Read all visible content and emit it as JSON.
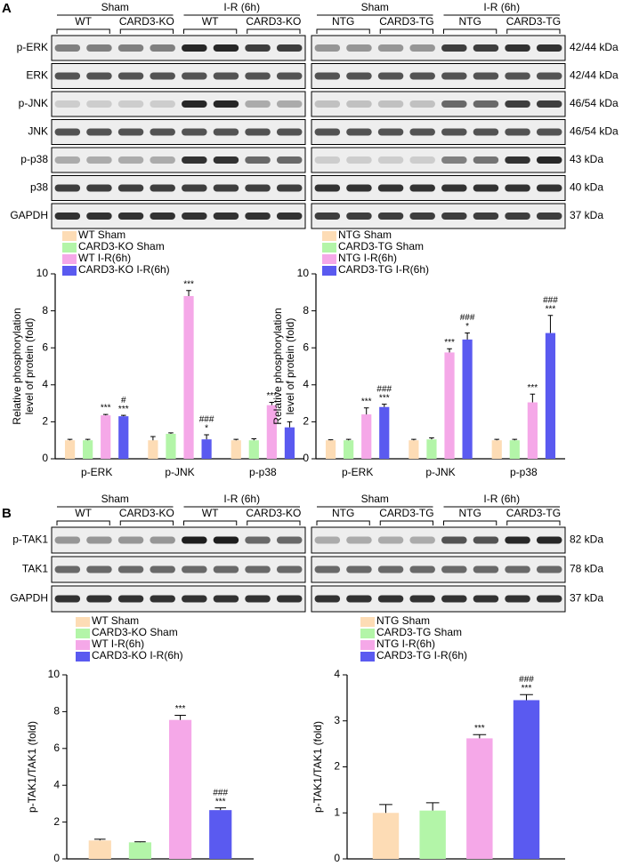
{
  "panel_labels": [
    "A",
    "B"
  ],
  "blots": [
    {
      "groups": [
        "Sham",
        "I-R (6h)"
      ],
      "lanes": [
        "WT",
        "CARD3-KO",
        "WT",
        "CARD3-KO"
      ],
      "rows": [
        "p-ERK",
        "ERK",
        "p-JNK",
        "JNK",
        "p-p38",
        "p38",
        "GAPDH"
      ]
    },
    {
      "groups": [
        "Sham",
        "I-R (6h)"
      ],
      "lanes": [
        "NTG",
        "CARD3-TG",
        "NTG",
        "CARD3-TG"
      ],
      "sizes": [
        "42/44 kDa",
        "42/44 kDa",
        "46/54 kDa",
        "46/54 kDa",
        "43 kDa",
        "40 kDa",
        "37 kDa"
      ]
    },
    {
      "groups": [
        "Sham",
        "I-R (6h)"
      ],
      "lanes": [
        "WT",
        "CARD3-KO",
        "WT",
        "CARD3-KO"
      ],
      "rows": [
        "p-TAK1",
        "TAK1",
        "GAPDH"
      ]
    },
    {
      "groups": [
        "Sham",
        "I-R (6h)"
      ],
      "lanes": [
        "NTG",
        "CARD3-TG",
        "NTG",
        "CARD3-TG"
      ],
      "sizes": [
        "82 kDa",
        "78 kDa",
        "37 kDa"
      ]
    }
  ],
  "chart_data": [
    {
      "type": "bar",
      "ylabel": [
        "Relative phosphorylation",
        "level of protein (fold)"
      ],
      "categories": [
        "p-ERK",
        "p-JNK",
        "p-p38"
      ],
      "ylim": [
        0,
        10
      ],
      "yticks": [
        0,
        2,
        4,
        6,
        8,
        10
      ],
      "series": [
        {
          "name": "WT Sham",
          "color": "#fddcb5",
          "values": [
            1.0,
            1.0,
            1.0
          ],
          "errors": [
            0.05,
            0.2,
            0.05
          ],
          "annotations": [
            null,
            null,
            null
          ]
        },
        {
          "name": "CARD3-KO Sham",
          "color": "#b3f5a8",
          "values": [
            1.0,
            1.35,
            1.0
          ],
          "errors": [
            0.05,
            0.05,
            0.08
          ],
          "annotations": [
            null,
            null,
            null
          ]
        },
        {
          "name": "WT I-R(6h)",
          "color": "#f5a8e8",
          "values": [
            2.35,
            8.8,
            2.9
          ],
          "errors": [
            0.05,
            0.3,
            0.15
          ],
          "annotations": [
            [
              "***"
            ],
            [
              "***"
            ],
            [
              "***"
            ]
          ]
        },
        {
          "name": "CARD3-KO I-R(6h)",
          "color": "#5a5af0",
          "values": [
            2.3,
            1.05,
            1.7
          ],
          "errors": [
            0.05,
            0.25,
            0.3
          ],
          "annotations": [
            [
              "#",
              "***"
            ],
            [
              "###",
              "*"
            ],
            null
          ]
        }
      ]
    },
    {
      "type": "bar",
      "ylabel": [
        "Relative phosphorylation",
        "level of protein (fold)"
      ],
      "categories": [
        "p-ERK",
        "p-JNK",
        "p-p38"
      ],
      "ylim": [
        0,
        10
      ],
      "yticks": [
        0,
        2,
        4,
        6,
        8,
        10
      ],
      "series": [
        {
          "name": "NTG Sham",
          "color": "#fddcb5",
          "values": [
            1.0,
            1.0,
            1.0
          ],
          "errors": [
            0.03,
            0.05,
            0.05
          ],
          "annotations": [
            null,
            null,
            null
          ]
        },
        {
          "name": "CARD3-TG Sham",
          "color": "#b3f5a8",
          "values": [
            1.0,
            1.05,
            1.0
          ],
          "errors": [
            0.05,
            0.08,
            0.05
          ],
          "annotations": [
            null,
            null,
            null
          ]
        },
        {
          "name": "NTG I-R(6h)",
          "color": "#f5a8e8",
          "values": [
            2.4,
            5.75,
            3.05
          ],
          "errors": [
            0.35,
            0.2,
            0.45
          ],
          "annotations": [
            [
              "***"
            ],
            [
              "***"
            ],
            [
              "***"
            ]
          ]
        },
        {
          "name": "CARD3-TG I-R(6h)",
          "color": "#5a5af0",
          "values": [
            2.8,
            6.45,
            6.8
          ],
          "errors": [
            0.15,
            0.35,
            0.95
          ],
          "annotations": [
            [
              "###",
              "***"
            ],
            [
              "###",
              "*"
            ],
            [
              "###",
              "***"
            ]
          ]
        }
      ]
    },
    {
      "type": "bar",
      "ylabel": [
        "p-TAK1/TAK1 (fold)"
      ],
      "categories": [
        null
      ],
      "ylim": [
        0,
        10
      ],
      "yticks": [
        0,
        2,
        4,
        6,
        8,
        10
      ],
      "series": [
        {
          "name": "WT Sham",
          "color": "#fddcb5",
          "values": [
            1.0
          ],
          "errors": [
            0.07
          ],
          "annotations": [
            null
          ]
        },
        {
          "name": "CARD3-KO Sham",
          "color": "#b3f5a8",
          "values": [
            0.9
          ],
          "errors": [
            0.03
          ],
          "annotations": [
            null
          ]
        },
        {
          "name": "WT I-R(6h)",
          "color": "#f5a8e8",
          "values": [
            7.55
          ],
          "errors": [
            0.25
          ],
          "annotations": [
            [
              "***"
            ]
          ]
        },
        {
          "name": "CARD3-KO I-R(6h)",
          "color": "#5a5af0",
          "values": [
            2.65
          ],
          "errors": [
            0.12
          ],
          "annotations": [
            [
              "###",
              "***"
            ]
          ]
        }
      ]
    },
    {
      "type": "bar",
      "ylabel": [
        "p-TAK1/TAK1 (fold)"
      ],
      "categories": [
        null
      ],
      "ylim": [
        0,
        4
      ],
      "yticks": [
        0,
        1,
        2,
        3,
        4
      ],
      "series": [
        {
          "name": "NTG Sham",
          "color": "#fddcb5",
          "values": [
            1.0
          ],
          "errors": [
            0.18
          ],
          "annotations": [
            null
          ]
        },
        {
          "name": "CARD3-TG Sham",
          "color": "#b3f5a8",
          "values": [
            1.05
          ],
          "errors": [
            0.17
          ],
          "annotations": [
            null
          ]
        },
        {
          "name": "NTG I-R(6h)",
          "color": "#f5a8e8",
          "values": [
            2.62
          ],
          "errors": [
            0.08
          ],
          "annotations": [
            [
              "***"
            ]
          ]
        },
        {
          "name": "CARD3-TG I-R(6h)",
          "color": "#5a5af0",
          "values": [
            3.45
          ],
          "errors": [
            0.12
          ],
          "annotations": [
            [
              "###",
              "***"
            ]
          ]
        }
      ]
    }
  ]
}
